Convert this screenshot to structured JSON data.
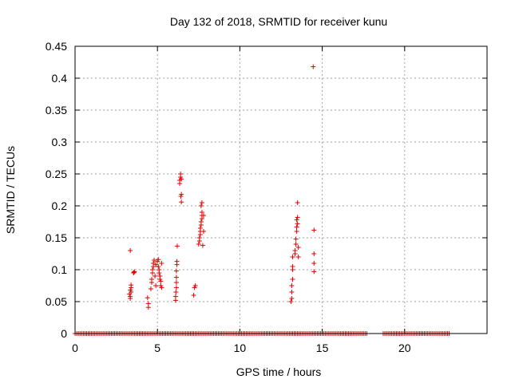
{
  "chart_data": {
    "type": "scatter",
    "title": "Day 132 of 2018, SRMTID for receiver kunu",
    "xlabel": "GPS time / hours",
    "ylabel": "SRMTID / TECUs",
    "xlim": [
      0,
      25
    ],
    "ylim": [
      0,
      0.45
    ],
    "grid": true,
    "marker": "+",
    "color": "#e00000",
    "xticks": [
      0,
      5,
      10,
      15,
      20
    ],
    "xtick_labels": [
      "0",
      "5",
      "10",
      "15",
      "20"
    ],
    "yticks": [
      0,
      0.05,
      0.1,
      0.15,
      0.2,
      0.25,
      0.3,
      0.35,
      0.4,
      0.45
    ],
    "ytick_labels": [
      "0",
      "0.05",
      "0.1",
      "0.15",
      "0.2",
      "0.25",
      "0.3",
      "0.35",
      "0.4",
      "0.45"
    ],
    "baseline_zero_ranges": [
      [
        0.0,
        17.7
      ],
      [
        18.7,
        22.7
      ]
    ],
    "series": [
      {
        "name": "SRMTID",
        "points": [
          [
            3.3,
            0.062
          ],
          [
            3.35,
            0.055
          ],
          [
            3.35,
            0.068
          ],
          [
            3.4,
            0.072
          ],
          [
            3.4,
            0.076
          ],
          [
            3.35,
            0.058
          ],
          [
            3.4,
            0.065
          ],
          [
            3.35,
            0.13
          ],
          [
            3.55,
            0.095
          ],
          [
            3.6,
            0.097
          ],
          [
            3.58,
            0.096
          ],
          [
            4.4,
            0.056
          ],
          [
            4.45,
            0.047
          ],
          [
            4.45,
            0.041
          ],
          [
            4.6,
            0.07
          ],
          [
            4.65,
            0.08
          ],
          [
            4.65,
            0.085
          ],
          [
            4.7,
            0.095
          ],
          [
            4.7,
            0.1
          ],
          [
            4.75,
            0.105
          ],
          [
            4.75,
            0.11
          ],
          [
            4.8,
            0.115
          ],
          [
            4.85,
            0.09
          ],
          [
            4.9,
            0.075
          ],
          [
            4.9,
            0.108
          ],
          [
            5.0,
            0.113
          ],
          [
            5.05,
            0.116
          ],
          [
            5.05,
            0.105
          ],
          [
            5.1,
            0.1
          ],
          [
            5.1,
            0.095
          ],
          [
            5.15,
            0.09
          ],
          [
            5.15,
            0.085
          ],
          [
            5.2,
            0.082
          ],
          [
            5.2,
            0.075
          ],
          [
            5.25,
            0.072
          ],
          [
            5.25,
            0.11
          ],
          [
            6.1,
            0.052
          ],
          [
            6.1,
            0.058
          ],
          [
            6.12,
            0.065
          ],
          [
            6.15,
            0.072
          ],
          [
            6.15,
            0.08
          ],
          [
            6.15,
            0.088
          ],
          [
            6.15,
            0.098
          ],
          [
            6.18,
            0.108
          ],
          [
            6.18,
            0.113
          ],
          [
            6.2,
            0.137
          ],
          [
            6.35,
            0.235
          ],
          [
            6.35,
            0.24
          ],
          [
            6.4,
            0.245
          ],
          [
            6.4,
            0.25
          ],
          [
            6.45,
            0.242
          ],
          [
            6.42,
            0.215
          ],
          [
            6.45,
            0.218
          ],
          [
            6.45,
            0.206
          ],
          [
            7.2,
            0.06
          ],
          [
            7.25,
            0.072
          ],
          [
            7.3,
            0.075
          ],
          [
            7.5,
            0.14
          ],
          [
            7.55,
            0.145
          ],
          [
            7.55,
            0.15
          ],
          [
            7.6,
            0.155
          ],
          [
            7.6,
            0.16
          ],
          [
            7.6,
            0.165
          ],
          [
            7.65,
            0.17
          ],
          [
            7.65,
            0.175
          ],
          [
            7.7,
            0.18
          ],
          [
            7.7,
            0.185
          ],
          [
            7.7,
            0.19
          ],
          [
            7.65,
            0.2
          ],
          [
            7.7,
            0.205
          ],
          [
            7.75,
            0.138
          ],
          [
            7.8,
            0.16
          ],
          [
            7.8,
            0.185
          ],
          [
            13.1,
            0.05
          ],
          [
            13.15,
            0.055
          ],
          [
            13.15,
            0.065
          ],
          [
            13.15,
            0.075
          ],
          [
            13.2,
            0.085
          ],
          [
            13.2,
            0.1
          ],
          [
            13.2,
            0.105
          ],
          [
            13.2,
            0.12
          ],
          [
            13.35,
            0.125
          ],
          [
            13.35,
            0.13
          ],
          [
            13.4,
            0.14
          ],
          [
            13.4,
            0.148
          ],
          [
            13.45,
            0.16
          ],
          [
            13.45,
            0.167
          ],
          [
            13.5,
            0.172
          ],
          [
            13.45,
            0.178
          ],
          [
            13.5,
            0.182
          ],
          [
            13.5,
            0.205
          ],
          [
            13.55,
            0.135
          ],
          [
            13.55,
            0.12
          ],
          [
            14.45,
            0.418
          ],
          [
            14.5,
            0.162
          ],
          [
            14.5,
            0.125
          ],
          [
            14.5,
            0.11
          ],
          [
            14.5,
            0.097
          ]
        ]
      }
    ]
  }
}
